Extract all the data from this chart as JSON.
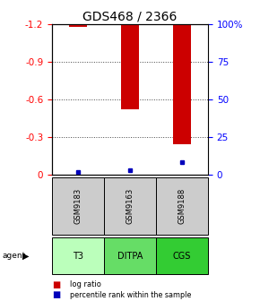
{
  "title": "GDS468 / 2366",
  "samples": [
    "GSM9183",
    "GSM9163",
    "GSM9188"
  ],
  "agents": [
    "T3",
    "DITPA",
    "CGS"
  ],
  "log_ratios": [
    -1.18,
    -0.52,
    -0.24
  ],
  "percentile_ranks": [
    2.0,
    3.0,
    8.0
  ],
  "left_axis_ticks": [
    0,
    -0.3,
    -0.6,
    -0.9,
    -1.2
  ],
  "right_axis_ticks": [
    100,
    75,
    50,
    25,
    0
  ],
  "ymin": -1.2,
  "ymax": 0.0,
  "bar_color": "#cc0000",
  "percentile_color": "#0000bb",
  "sample_bg_color": "#cccccc",
  "agent_bg_colors": [
    "#bbffbb",
    "#66dd66",
    "#33cc33"
  ],
  "dotted_color": "#444444",
  "title_fontsize": 10,
  "tick_fontsize": 7.5,
  "bar_width": 0.35
}
